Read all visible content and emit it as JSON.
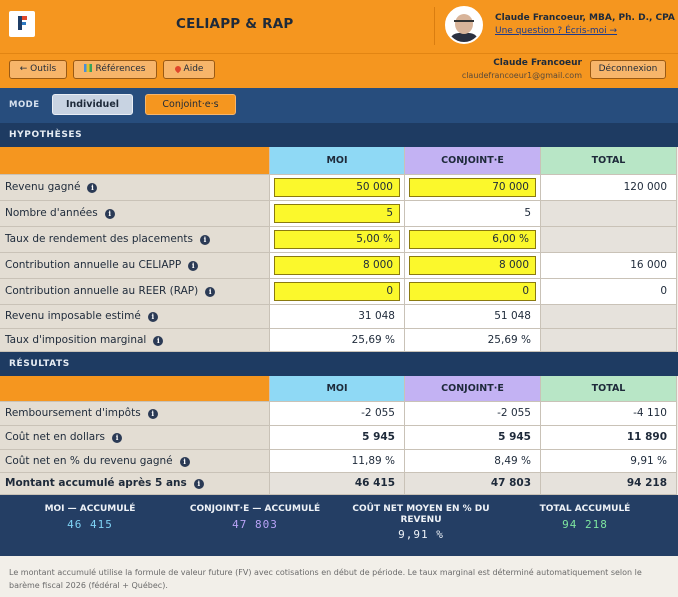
{
  "header": {
    "app_title": "CELIAPP & RAP",
    "author_name": "Claude Francoeur, MBA, Ph. D., CPA",
    "author_link": "Une question ? Écris-moi →"
  },
  "toolbar": {
    "tools_label": "← Outils",
    "references_label": "Références",
    "help_label": "Aide",
    "user_name": "Claude Francoeur",
    "user_email": "claudefrancoeur1@gmail.com",
    "logout_label": "Déconnexion"
  },
  "mode": {
    "label": "MODE",
    "individual_label": "Individuel",
    "couple_label": "Conjoint·e·s"
  },
  "hypotheses": {
    "section_title": "HYPOTHÈSES",
    "columns": {
      "moi": "MOI",
      "conjoint": "CONJOINT·E",
      "total": "TOTAL"
    },
    "rows": [
      {
        "label": "Revenu gagné",
        "moi": "50 000",
        "conjoint": "70 000",
        "total": "120 000"
      },
      {
        "label": "Nombre d'années",
        "moi": "5",
        "conjoint": "5",
        "total": ""
      },
      {
        "label": "Taux de rendement des placements",
        "moi": "5,00 %",
        "conjoint": "6,00 %",
        "total": ""
      },
      {
        "label": "Contribution annuelle au CELIAPP",
        "moi": "8 000",
        "conjoint": "8 000",
        "total": "16 000"
      },
      {
        "label": "Contribution annuelle au REER (RAP)",
        "moi": "0",
        "conjoint": "0",
        "total": "0"
      },
      {
        "label": "Revenu imposable estimé",
        "moi": "31 048",
        "conjoint": "51 048",
        "total": ""
      },
      {
        "label": "Taux d'imposition marginal",
        "moi": "25,69 %",
        "conjoint": "25,69 %",
        "total": ""
      }
    ]
  },
  "resultats": {
    "section_title": "RÉSULTATS",
    "columns": {
      "moi": "MOI",
      "conjoint": "CONJOINT·E",
      "total": "TOTAL"
    },
    "rows": [
      {
        "label": "Remboursement d'impôts",
        "moi": "-2 055",
        "conjoint": "-2 055",
        "total": "-4 110"
      },
      {
        "label": "Coût net en dollars",
        "moi": "5 945",
        "conjoint": "5 945",
        "total": "11 890"
      },
      {
        "label": "Coût net en % du revenu gagné",
        "moi": "11,89 %",
        "conjoint": "8,49 %",
        "total": "9,91 %"
      },
      {
        "label": "Montant accumulé après 5 ans",
        "moi": "46 415",
        "conjoint": "47 803",
        "total": "94 218"
      }
    ]
  },
  "summary": {
    "moi_label": "MOI — ACCUMULÉ",
    "moi_value": "46 415",
    "conjoint_label": "CONJOINT·E — ACCUMULÉ",
    "conjoint_value": "47 803",
    "cost_label": "COÛT NET MOYEN EN % DU REVENU",
    "cost_value": "9,91 %",
    "total_label": "TOTAL ACCUMULÉ",
    "total_value": "94 218"
  },
  "footnote": "Le montant accumulé utilise la formule de valeur future (FV) avec cotisations en début de période. Le taux marginal est déterminé automatiquement selon le barème fiscal 2026 (fédéral + Québec).",
  "colors": {
    "orange": "#f5961f",
    "navy": "#1e3b62",
    "moi_header": "#8fd9f5",
    "conjoint_header": "#c3b2f3",
    "total_header": "#b8e6c6",
    "input_yellow": "#fbf82c",
    "moi_value": "#7fd3f5",
    "conjoint_value": "#b9a3f7",
    "total_value": "#7ee6a0"
  },
  "icons": [
    "logo-icon",
    "info-icon",
    "references-icon",
    "help-icon",
    "avatar-photo"
  ]
}
